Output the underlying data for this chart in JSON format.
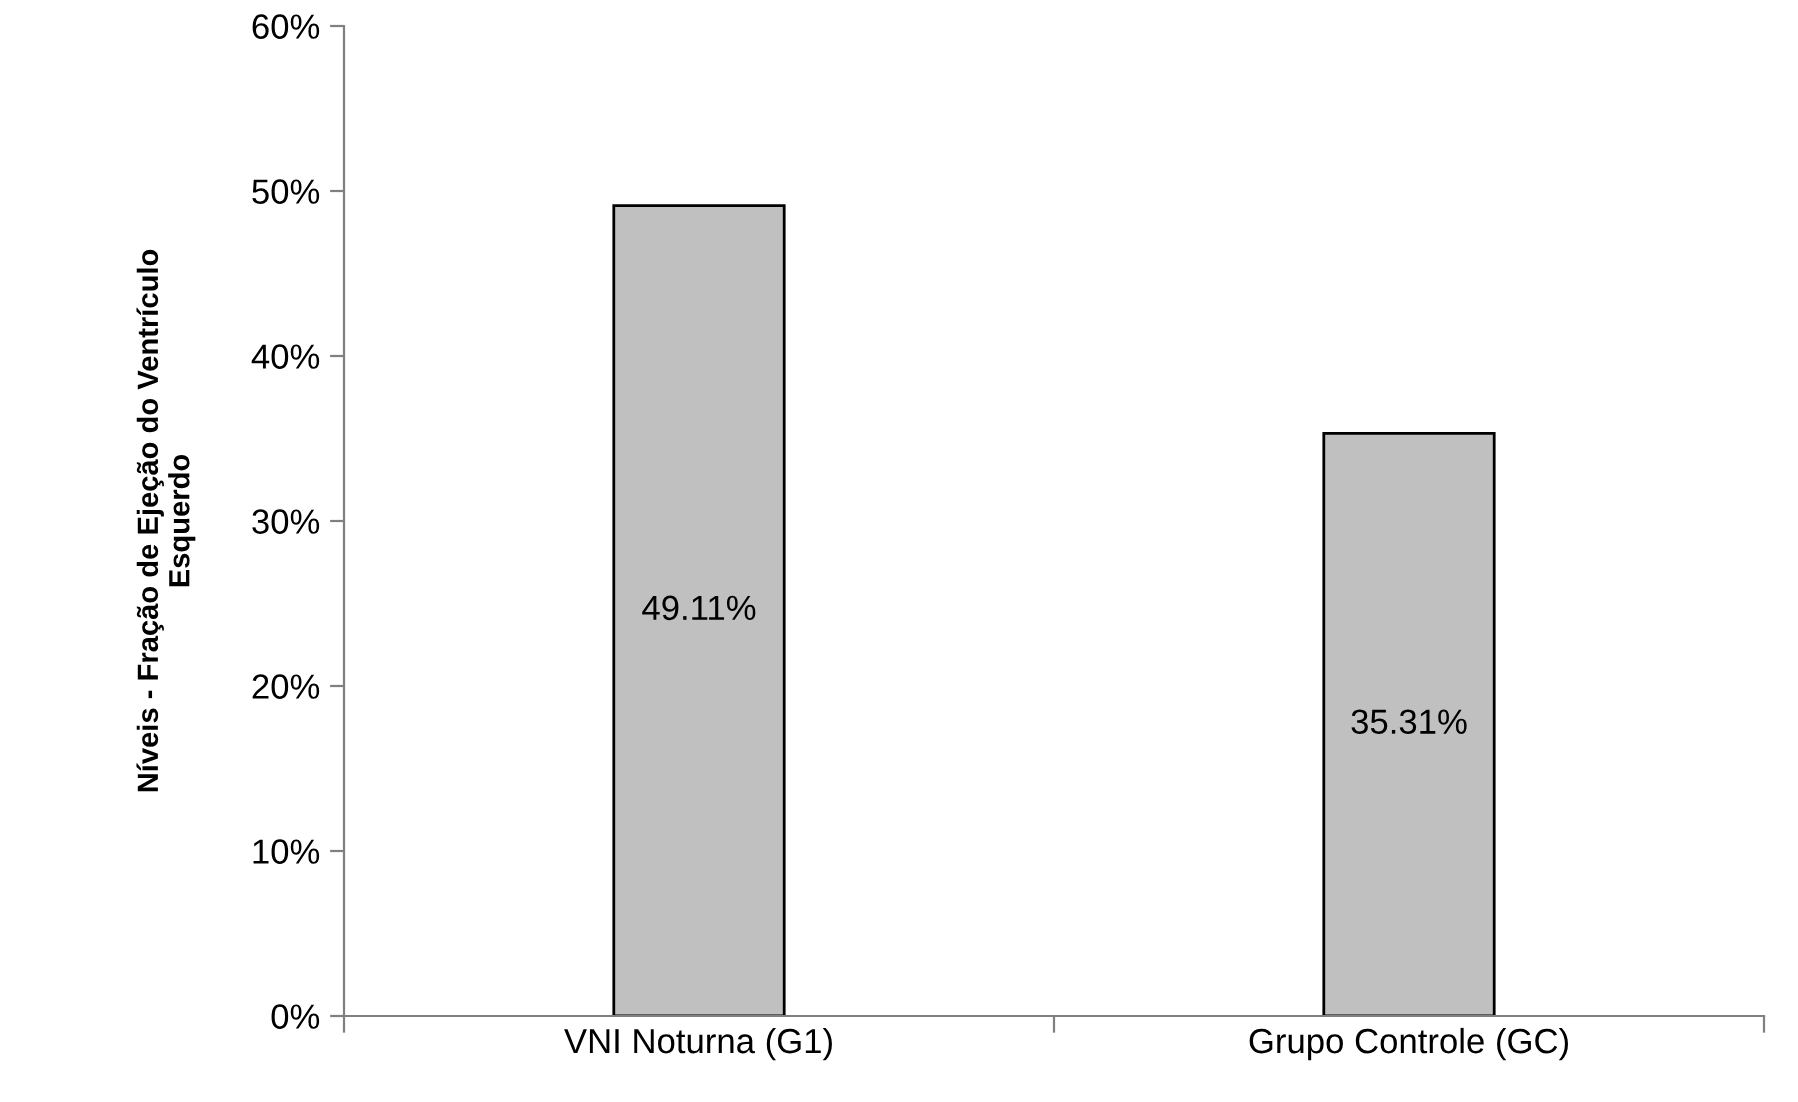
{
  "chart_data": {
    "type": "bar",
    "ylabel": "Níveis - Fração de Ejeção do Ventrículo\nEsquerdo",
    "categories": [
      "VNI Noturna (G1)",
      "Grupo Controle (GC)"
    ],
    "values": [
      49.11,
      35.31
    ],
    "value_labels": [
      "49.11%",
      "35.31%"
    ],
    "color": "#c0c0c0",
    "ylim": [
      0,
      60
    ],
    "yticks": [
      {
        "value": 0,
        "label": "0%"
      },
      {
        "value": 10,
        "label": "10%"
      },
      {
        "value": 20,
        "label": "20%"
      },
      {
        "value": 30,
        "label": "30%"
      },
      {
        "value": 40,
        "label": "40%"
      },
      {
        "value": 50,
        "label": "50%"
      },
      {
        "value": 60,
        "label": "60%"
      }
    ],
    "grid": false,
    "legend": false
  }
}
